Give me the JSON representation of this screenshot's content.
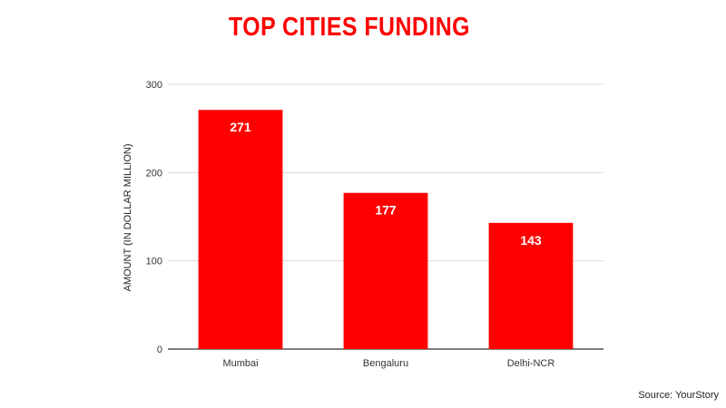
{
  "colors": {
    "title": "#ff0000",
    "bar": "#ff0000",
    "grid": "#d9d9d9",
    "axis": "#333333"
  },
  "chart_data": {
    "type": "bar",
    "title": "TOP CITIES FUNDING",
    "ylabel": "AMOUNT (IN DOLLAR MILLION)",
    "xlabel": "",
    "categories": [
      "Mumbai",
      "Bengaluru",
      "Delhi-NCR"
    ],
    "values": [
      271,
      177,
      143
    ],
    "ylim": [
      0,
      300
    ],
    "yticks": [
      0,
      100,
      200,
      300
    ],
    "grid": true,
    "legend": "none"
  },
  "source": "Source: YourStory"
}
